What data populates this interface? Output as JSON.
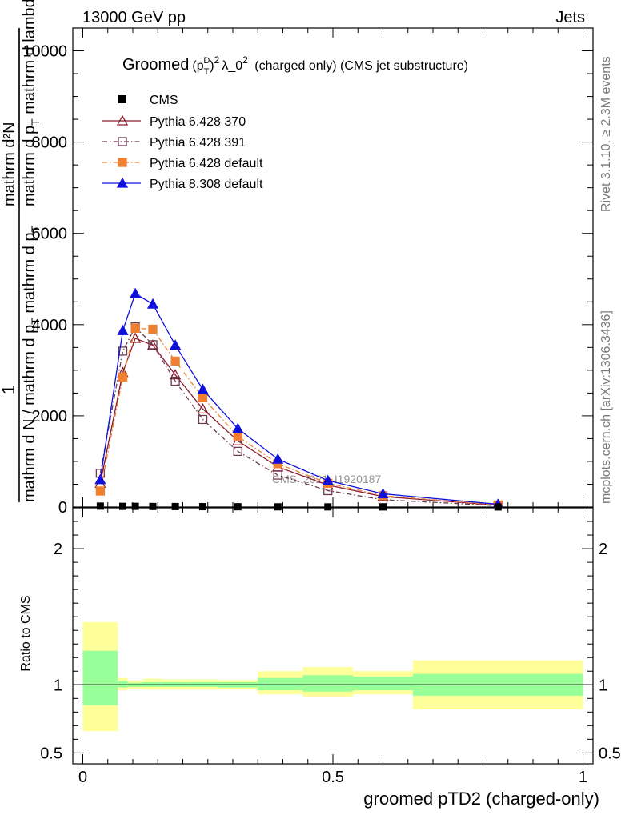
{
  "header": {
    "left": "13000 GeV pp",
    "right": "Jets"
  },
  "side_labels": {
    "rivet": "Rivet 3.1.10, ≥ 2.3M events",
    "mcplots": "mcplots.cern.ch [arXiv:1306.3436]"
  },
  "watermark": "CMS_2021_I1920187",
  "chart_data": {
    "type": "line",
    "title": "Groomed (p_T^D)^2 λ_0^2 (charged only) (CMS jet substructure)",
    "title_parts": {
      "a": "Groomed",
      "b": "(p",
      "c": "T",
      "d": "D",
      "e": ")",
      "f": "2",
      "g": "λ_0",
      "h": "2",
      "i": " (charged only) (CMS jet substructure)"
    },
    "xlabel": "groomed pTD2 (charged-only)",
    "ylabel_main": "1 / mathrm dN / mathrm d p_T mathrm d p_T mathrm d lambda mathrm dN",
    "ylabel_parts": {
      "one": "1",
      "numerator": "mathrm d²N",
      "denom_top": "mathrm d p",
      "denom_top_sub": "T",
      "denom_top_rest": " mathrm d lambda",
      "denom_bottom": "mathrm d N / mathrm d p",
      "denom_bottom_sub": "T",
      "denom_bottom_rest": " mathrm d p",
      "denom_bottom_sub2": "T"
    },
    "ylabel_ratio": "Ratio to CMS",
    "xlim": [
      -0.02,
      1.02
    ],
    "ylim_main": [
      0,
      10500
    ],
    "ylim_ratio": [
      0.42,
      2.3
    ],
    "x_ticks": [
      0,
      0.5,
      1
    ],
    "x_tick_labels": [
      "0",
      "0.5",
      "1"
    ],
    "y_ticks_main": [
      0,
      2000,
      4000,
      6000,
      8000,
      10000
    ],
    "y_tick_labels_main": [
      "0",
      "2000",
      "4000",
      "6000",
      "8000",
      "10000"
    ],
    "y_ticks_ratio": [
      0.5,
      1,
      2
    ],
    "y_tick_labels_ratio": [
      "0.5",
      "1",
      "2"
    ],
    "legend_position": "top-left",
    "cms": {
      "name": "CMS",
      "x": [
        0.035,
        0.08,
        0.105,
        0.14,
        0.185,
        0.24,
        0.31,
        0.39,
        0.49,
        0.6,
        0.83
      ],
      "y": [
        20,
        15,
        15,
        12,
        10,
        8,
        6,
        4,
        3,
        2,
        1
      ]
    },
    "series": [
      {
        "name": "Pythia 6.428 370",
        "color": "#8b1a2b",
        "marker": "triangle-open",
        "dash": "",
        "x": [
          0.035,
          0.08,
          0.105,
          0.14,
          0.185,
          0.24,
          0.31,
          0.39,
          0.49,
          0.6,
          0.83
        ],
        "y": [
          520,
          2950,
          3700,
          3550,
          2900,
          2150,
          1450,
          880,
          480,
          230,
          40
        ]
      },
      {
        "name": "Pythia 6.428 391",
        "color": "#6b3a50",
        "marker": "square-open",
        "dash": "6,3,1.5,3",
        "x": [
          0.035,
          0.08,
          0.105,
          0.14,
          0.185,
          0.24,
          0.31,
          0.39,
          0.49,
          0.6,
          0.83
        ],
        "y": [
          740,
          3420,
          3950,
          3560,
          2760,
          1920,
          1220,
          700,
          360,
          160,
          30
        ]
      },
      {
        "name": "Pythia 6.428 default",
        "color": "#f08030",
        "marker": "square-filled",
        "dash": "6,3,1.5,3",
        "x": [
          0.035,
          0.08,
          0.105,
          0.14,
          0.185,
          0.24,
          0.31,
          0.39,
          0.49,
          0.6,
          0.83
        ],
        "y": [
          350,
          2850,
          3920,
          3900,
          3200,
          2400,
          1550,
          950,
          520,
          250,
          45
        ]
      },
      {
        "name": "Pythia 8.308 default",
        "color": "#1010dd",
        "marker": "triangle-filled",
        "dash": "",
        "x": [
          0.035,
          0.08,
          0.105,
          0.14,
          0.185,
          0.24,
          0.31,
          0.39,
          0.49,
          0.6,
          0.83
        ],
        "y": [
          600,
          3870,
          4680,
          4450,
          3550,
          2580,
          1720,
          1050,
          580,
          290,
          60
        ]
      }
    ],
    "ratio_bands": {
      "edges": [
        0.0,
        0.07,
        0.09,
        0.12,
        0.16,
        0.21,
        0.27,
        0.35,
        0.44,
        0.54,
        0.66,
        1.0
      ],
      "inner": [
        [
          0.85,
          1.25
        ],
        [
          0.98,
          1.03
        ],
        [
          0.985,
          1.015
        ],
        [
          0.985,
          1.02
        ],
        [
          0.985,
          1.02
        ],
        [
          0.985,
          1.02
        ],
        [
          0.98,
          1.02
        ],
        [
          0.96,
          1.05
        ],
        [
          0.95,
          1.07
        ],
        [
          0.96,
          1.06
        ],
        [
          0.92,
          1.08
        ]
      ],
      "outer": [
        [
          0.66,
          1.46
        ],
        [
          0.96,
          1.05
        ],
        [
          0.97,
          1.03
        ],
        [
          0.965,
          1.045
        ],
        [
          0.965,
          1.04
        ],
        [
          0.965,
          1.04
        ],
        [
          0.965,
          1.035
        ],
        [
          0.93,
          1.1
        ],
        [
          0.91,
          1.13
        ],
        [
          0.93,
          1.1
        ],
        [
          0.82,
          1.18
        ]
      ],
      "inner_color": "#99ff99",
      "outer_color": "#ffff99"
    }
  }
}
